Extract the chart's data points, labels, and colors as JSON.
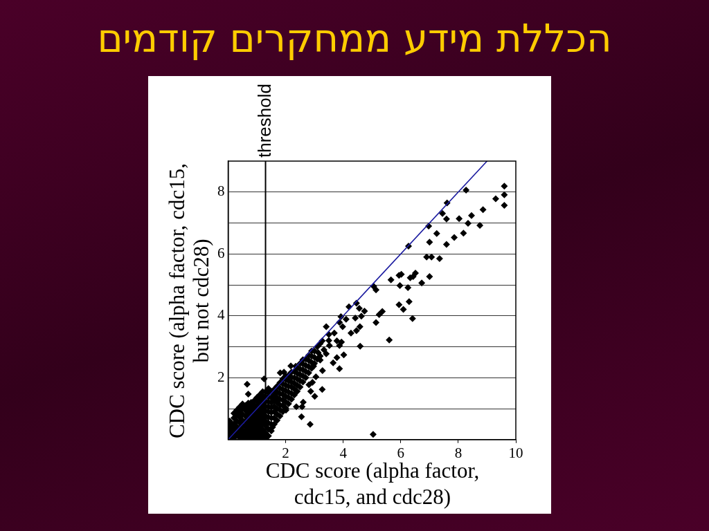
{
  "chart_data": {
    "type": "scatter",
    "title": "הכללת מידע ממחקרים קודמים",
    "xlabel": "CDC score (alpha factor, cdc15, and cdc28)",
    "ylabel": "CDC score (alpha factor, cdc15, but not cdc28)",
    "xlim": [
      0,
      10
    ],
    "xticks": [
      2,
      4,
      6,
      8,
      10
    ],
    "ylim": [
      0,
      9
    ],
    "yticks": [
      {
        "value": 1,
        "label": null
      },
      2,
      {
        "value": 3,
        "label": null
      },
      4,
      {
        "value": 5,
        "label": null
      },
      6,
      {
        "value": 7,
        "label": null
      },
      8
    ],
    "grid": "y",
    "marker": "diamond",
    "ref_lines": [
      {
        "axis": "x",
        "value": 1.3,
        "label": "threshold",
        "color": "#000000"
      }
    ],
    "series": [
      {
        "color": "#000000",
        "x": [
          8.27,
          9.6,
          9.6,
          9.3,
          9.6,
          7.61,
          7.45,
          7.59,
          8.03,
          8.46,
          8.86,
          8.34,
          8.75,
          6.97,
          7.25,
          8.18,
          7.86,
          7.0,
          7.59,
          6.27,
          6.9,
          7.07,
          7.35,
          7.0,
          5.66,
          5.94,
          6.02,
          5.97,
          6.25,
          6.33,
          6.43,
          6.51,
          6.73,
          5.06,
          5.14,
          5.94,
          6.29,
          4.46,
          6.09,
          6.41,
          5.36,
          5.25,
          5.14,
          5.6,
          4.2,
          4.56,
          4.74,
          4.63,
          4.42,
          4.58,
          4.46,
          4.27,
          4.59,
          4.1,
          3.92,
          3.87,
          3.98,
          3.41,
          3.69,
          3.78,
          3.94,
          3.87,
          4.02,
          3.52,
          3.78,
          3.65,
          3.87,
          3.27,
          3.33,
          3.13,
          3.41,
          3.2,
          3.28,
          2.97,
          3.05,
          3.27,
          3.01,
          2.87,
          2.61,
          2.57,
          2.37,
          2.55,
          2.85,
          5.04,
          2.81,
          2.93,
          1.81,
          1.94,
          2.18,
          2.35,
          1.25,
          0.66,
          0.7,
          2.01,
          1.54,
          0.05,
          0.05,
          0.05,
          0.05,
          0.1,
          0.1,
          0.1,
          0.1,
          0.2,
          0.2,
          0.2,
          0.2,
          0.2,
          0.2,
          0.3,
          0.3,
          0.3,
          0.3,
          0.3,
          0.3,
          0.4,
          0.4,
          0.4,
          0.4,
          0.4,
          0.4,
          0.4,
          0.5,
          0.5,
          0.5,
          0.5,
          0.5,
          0.5,
          0.5,
          0.5,
          0.6,
          0.6,
          0.6,
          0.6,
          0.6,
          0.6,
          0.6,
          0.7,
          0.7,
          0.7,
          0.7,
          0.7,
          0.7,
          0.7,
          0.7,
          0.8,
          0.8,
          0.8,
          0.8,
          0.8,
          0.8,
          0.8,
          0.8,
          0.9,
          0.9,
          0.9,
          0.9,
          0.9,
          0.9,
          0.9,
          0.9,
          0.9,
          1.0,
          1.0,
          1.0,
          1.0,
          1.0,
          1.0,
          1.0,
          1.0,
          1.0,
          1.1,
          1.1,
          1.1,
          1.1,
          1.1,
          1.1,
          1.1,
          1.1,
          1.1,
          1.1,
          1.2,
          1.2,
          1.2,
          1.2,
          1.2,
          1.2,
          1.2,
          1.2,
          1.2,
          1.2,
          1.3,
          1.3,
          1.3,
          1.3,
          1.3,
          1.3,
          1.3,
          1.3,
          1.3,
          1.3,
          1.4,
          1.4,
          1.4,
          1.4,
          1.4,
          1.4,
          1.4,
          1.4,
          1.4,
          1.4,
          1.5,
          1.5,
          1.5,
          1.5,
          1.5,
          1.5,
          1.5,
          1.5,
          1.6,
          1.6,
          1.6,
          1.6,
          1.6,
          1.6,
          1.6,
          1.7,
          1.7,
          1.7,
          1.7,
          1.7,
          1.7,
          1.7,
          1.8,
          1.8,
          1.8,
          1.8,
          1.8,
          1.8,
          1.8,
          1.9,
          1.9,
          1.9,
          1.9,
          1.9,
          1.9,
          1.9,
          2.0,
          2.0,
          2.0,
          2.0,
          2.0,
          2.0,
          2.0,
          2.1,
          2.1,
          2.1,
          2.1,
          2.1,
          2.1,
          2.2,
          2.2,
          2.2,
          2.2,
          2.2,
          2.2,
          2.3,
          2.3,
          2.3,
          2.3,
          2.3,
          2.4,
          2.4,
          2.4,
          2.4,
          2.4,
          2.5,
          2.5,
          2.5,
          2.5,
          2.5,
          2.6,
          2.6,
          2.6,
          2.6,
          2.6,
          2.7,
          2.7,
          2.7,
          2.7,
          2.8,
          2.8,
          2.8,
          2.8,
          2.9,
          2.9,
          2.9,
          2.9,
          3.0,
          3.0,
          3.0,
          3.1,
          3.1,
          3.2,
          3.2,
          3.5,
          3.5
        ],
        "values": [
          8.06,
          8.19,
          7.91,
          7.78,
          7.57,
          7.65,
          7.31,
          7.13,
          7.14,
          7.24,
          7.43,
          6.99,
          6.92,
          6.9,
          6.66,
          6.67,
          6.53,
          6.38,
          6.31,
          6.25,
          5.9,
          5.9,
          5.85,
          5.27,
          5.16,
          5.31,
          5.34,
          4.98,
          4.91,
          5.23,
          5.27,
          5.38,
          5.06,
          4.95,
          4.84,
          4.36,
          4.46,
          4.41,
          4.21,
          3.91,
          4.14,
          4.04,
          3.78,
          3.22,
          4.29,
          4.24,
          4.15,
          3.99,
          3.93,
          3.65,
          3.52,
          3.44,
          3.02,
          3.89,
          3.97,
          3.79,
          3.65,
          3.65,
          3.44,
          3.19,
          3.15,
          3.04,
          2.74,
          3.04,
          2.65,
          2.48,
          2.29,
          3.19,
          2.9,
          2.81,
          2.77,
          2.57,
          2.23,
          2.37,
          2.03,
          1.62,
          1.4,
          1.56,
          1.21,
          1.06,
          1.06,
          0.74,
          0.49,
          0.17,
          1.77,
          1.85,
          2.16,
          2.18,
          2.38,
          2.37,
          1.96,
          1.79,
          1.47,
          0.95,
          0.4,
          0.15,
          0.3,
          0.45,
          0.6,
          0.08,
          0.22,
          0.4,
          0.55,
          0.05,
          0.18,
          0.32,
          0.5,
          0.7,
          0.85,
          0.14,
          0.27,
          0.42,
          0.6,
          0.8,
          0.95,
          0.06,
          0.2,
          0.36,
          0.55,
          0.72,
          0.9,
          1.05,
          0.04,
          0.16,
          0.3,
          0.46,
          0.62,
          0.82,
          1.0,
          1.15,
          0.1,
          0.26,
          0.42,
          0.58,
          0.76,
          0.95,
          1.1,
          0.04,
          0.2,
          0.36,
          0.52,
          0.68,
          0.86,
          1.02,
          1.18,
          0.1,
          0.28,
          0.44,
          0.6,
          0.76,
          0.92,
          1.08,
          1.2,
          0.04,
          0.2,
          0.36,
          0.52,
          0.68,
          0.84,
          1.0,
          1.12,
          1.25,
          0.12,
          0.3,
          0.46,
          0.62,
          0.78,
          0.94,
          1.1,
          1.24,
          1.36,
          0.04,
          0.22,
          0.4,
          0.56,
          0.72,
          0.88,
          1.04,
          1.2,
          1.32,
          1.45,
          0.12,
          0.32,
          0.5,
          0.66,
          0.82,
          0.98,
          1.14,
          1.3,
          1.42,
          1.55,
          0.04,
          0.22,
          0.44,
          0.6,
          0.76,
          0.92,
          1.08,
          1.24,
          1.4,
          1.55,
          0.12,
          0.34,
          0.54,
          0.72,
          0.9,
          1.06,
          1.22,
          1.38,
          1.52,
          1.65,
          0.28,
          0.5,
          0.7,
          0.88,
          1.04,
          1.2,
          1.36,
          1.56,
          0.5,
          0.7,
          0.9,
          1.08,
          1.26,
          1.44,
          1.62,
          0.62,
          0.82,
          1.0,
          1.2,
          1.36,
          1.54,
          1.72,
          0.76,
          0.96,
          1.12,
          1.3,
          1.48,
          1.66,
          1.84,
          0.9,
          1.1,
          1.28,
          1.46,
          1.62,
          1.8,
          1.96,
          1.02,
          1.22,
          1.4,
          1.58,
          1.76,
          1.94,
          2.06,
          1.16,
          1.36,
          1.54,
          1.72,
          1.9,
          2.08,
          1.3,
          1.5,
          1.7,
          1.86,
          2.02,
          2.18,
          1.44,
          1.64,
          1.82,
          2.0,
          2.2,
          1.56,
          1.76,
          1.96,
          2.14,
          2.32,
          1.7,
          1.9,
          2.1,
          2.28,
          2.46,
          1.86,
          2.06,
          2.26,
          2.44,
          2.58,
          2.0,
          2.2,
          2.4,
          2.6,
          2.16,
          2.36,
          2.56,
          2.72,
          2.3,
          2.5,
          2.7,
          2.86,
          2.46,
          2.66,
          2.86,
          2.6,
          3.0,
          2.7,
          3.1,
          3.2,
          3.4
        ]
      },
      {
        "type": "line",
        "color": "#1c1ca0",
        "marker": "none",
        "x": [
          0,
          9
        ],
        "values": [
          0,
          9
        ]
      }
    ]
  }
}
